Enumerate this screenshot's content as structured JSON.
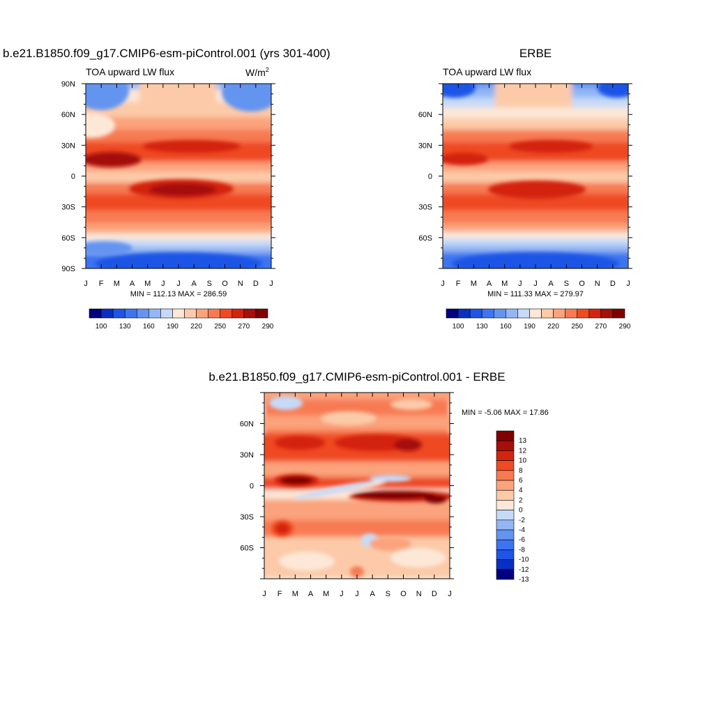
{
  "palette": [
    "#000080",
    "#0a2fc0",
    "#1e55e6",
    "#3d74f0",
    "#6494f0",
    "#93b6f4",
    "#c6daf8",
    "#fde7d7",
    "#fccaa8",
    "#fba37b",
    "#f77a52",
    "#ef4a22",
    "#d32410",
    "#a51008",
    "#800000"
  ],
  "chart_data": [
    {
      "type": "heatmap",
      "title": "b.e21.B1850.f09_g17.CMIP6-esm-piControl.001 (yrs 301-400)",
      "subtitle": "TOA upward LW flux",
      "units_base": "W/m",
      "units_sup": "2",
      "xlabel": "",
      "ylabel": "",
      "x_ticks": [
        "J",
        "F",
        "M",
        "A",
        "M",
        "J",
        "J",
        "A",
        "S",
        "O",
        "N",
        "D",
        "J"
      ],
      "y_ticks": [
        "90N",
        "60N",
        "30N",
        "0",
        "30S",
        "60S",
        "90S"
      ],
      "y_tick_values": [
        90,
        60,
        30,
        0,
        -30,
        -60,
        -90
      ],
      "ylim": [
        -90,
        90
      ],
      "stats": "MIN = 112.13 MAX = 286.59",
      "min": 112.13,
      "max": 286.59,
      "colorbar_labels": [
        "100",
        "130",
        "160",
        "190",
        "220",
        "250",
        "270",
        "290"
      ],
      "colorbar_levels": [
        100,
        115,
        130,
        145,
        160,
        175,
        190,
        205,
        220,
        235,
        250,
        260,
        270,
        280,
        290
      ]
    },
    {
      "type": "heatmap",
      "title": "ERBE",
      "subtitle": "TOA upward LW flux",
      "xlabel": "",
      "ylabel": "",
      "x_ticks": [
        "J",
        "F",
        "M",
        "A",
        "M",
        "J",
        "J",
        "A",
        "S",
        "O",
        "N",
        "D",
        "J"
      ],
      "y_ticks": [
        "60N",
        "30N",
        "0",
        "30S",
        "60S"
      ],
      "y_tick_values": [
        60,
        30,
        0,
        -30,
        -60
      ],
      "ylim": [
        -90,
        90
      ],
      "stats": "MIN = 111.33 MAX = 279.97",
      "min": 111.33,
      "max": 279.97,
      "colorbar_labels": [
        "100",
        "130",
        "160",
        "190",
        "220",
        "250",
        "270",
        "290"
      ],
      "colorbar_levels": [
        100,
        115,
        130,
        145,
        160,
        175,
        190,
        205,
        220,
        235,
        250,
        260,
        270,
        280,
        290
      ]
    },
    {
      "type": "heatmap",
      "title": "b.e21.B1850.f09_g17.CMIP6-esm-piControl.001 - ERBE",
      "x_ticks": [
        "J",
        "F",
        "M",
        "A",
        "M",
        "J",
        "J",
        "A",
        "S",
        "O",
        "N",
        "D",
        "J"
      ],
      "y_ticks": [
        "60N",
        "30N",
        "0",
        "30S",
        "60S"
      ],
      "y_tick_values": [
        60,
        30,
        0,
        -30,
        -60
      ],
      "ylim": [
        -90,
        90
      ],
      "stats": "MIN =  -5.06 MAX =  17.86",
      "min": -5.06,
      "max": 17.86,
      "colorbar_labels": [
        "13",
        "12",
        "10",
        "8",
        "6",
        "4",
        "2",
        "0",
        "-2",
        "-4",
        "-6",
        "-8",
        "-10",
        "-12",
        "-13"
      ],
      "colorbar_levels": [
        -13,
        -12,
        -10,
        -8,
        -6,
        -4,
        -2,
        0,
        2,
        4,
        6,
        8,
        10,
        12,
        13
      ]
    }
  ]
}
